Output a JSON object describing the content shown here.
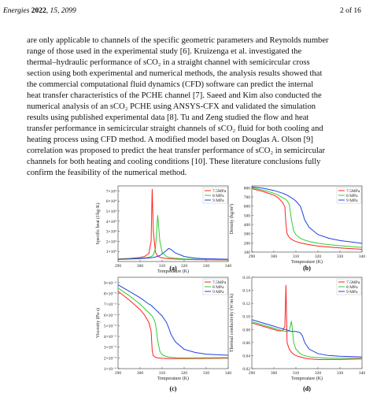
{
  "header": {
    "journal": "Energies",
    "year": "2022",
    "citation": ", 15, 2099",
    "page": "2 of 16"
  },
  "body": [
    "are only applicable to channels of the specific geometric parameters and Reynolds number",
    "range of those used in the experimental study [6]. Kruizenga et al. investigated the",
    "thermal–hydraulic performance of sCO₂ in a straight channel with semicircular cross",
    "section using both experimental and numerical methods, the analysis results showed that",
    "the commercial computational fluid dynamics (CFD) software can predict the internal",
    "heat transfer characteristics of the PCHE channel [7]. Saeed and Kim also conducted the",
    "numerical analysis of an sCO₂ PCHE using ANSYS-CFX and validated the simulation",
    "results using published experimental data [8]. Tu and Zeng studied the flow and heat",
    "transfer performance in semicircular straight channels of sCO₂ fluid for both cooling and",
    "heating process using CFD method. A modified model based on Douglas A. Olson [9]",
    "correlation was proposed to predict the heat transfer performance of sCO₂ in semicircular",
    "channels for both heating and cooling conditions [10]. These literature conclusions fully",
    "confirm the feasibility of the numerical method."
  ],
  "chart_data": [
    {
      "type": "line",
      "label": "(a)",
      "xlabel": "Temperature (K)",
      "ylabel": "Specific heat (J/kg·K)",
      "x": [
        290,
        295,
        300,
        302,
        304,
        305,
        305.5,
        306,
        307,
        308,
        309,
        310,
        312,
        313,
        314,
        316,
        320,
        325,
        330,
        340
      ],
      "xlim": [
        290,
        340
      ],
      "xticks": [
        290,
        300,
        310,
        320,
        330,
        340
      ],
      "ylim": [
        0,
        75000
      ],
      "yticks": [
        {
          "value": 10000,
          "label": "1×10⁴"
        },
        {
          "value": 20000,
          "label": "2×10⁴"
        },
        {
          "value": 30000,
          "label": "3×10⁴"
        },
        {
          "value": 40000,
          "label": "4×10⁴"
        },
        {
          "value": 50000,
          "label": "5×10⁴"
        },
        {
          "value": 60000,
          "label": "6×10⁴"
        },
        {
          "value": 70000,
          "label": "7×10⁴"
        }
      ],
      "series": [
        {
          "name": "7.5MPa",
          "color": "#ff2020",
          "values": [
            2500,
            3000,
            4000,
            5000,
            8000,
            20000,
            72000,
            30000,
            9000,
            5500,
            4200,
            3600,
            3000,
            2800,
            2600,
            2400,
            2100,
            1900,
            1800,
            1600
          ]
        },
        {
          "name": "8 MPa",
          "color": "#33cc33",
          "values": [
            2300,
            2700,
            3200,
            3600,
            4300,
            5000,
            5500,
            6500,
            13000,
            46000,
            20000,
            9000,
            5000,
            4200,
            3700,
            3200,
            2600,
            2200,
            2000,
            1800
          ]
        },
        {
          "name": "9 MPa",
          "color": "#2040e0",
          "values": [
            2100,
            2400,
            2800,
            3100,
            3500,
            3700,
            3900,
            4000,
            4500,
            5200,
            6000,
            7500,
            11000,
            13000,
            12000,
            8500,
            5000,
            3300,
            2700,
            2200
          ]
        }
      ]
    },
    {
      "type": "line",
      "label": "(b)",
      "xlabel": "Temperature (K)",
      "ylabel": "Density (kg/m³)",
      "x": [
        290,
        295,
        300,
        302,
        304,
        305,
        305.5,
        306,
        307,
        308,
        309,
        310,
        312,
        313,
        314,
        316,
        320,
        325,
        330,
        340
      ],
      "xlim": [
        290,
        340
      ],
      "xticks": [
        290,
        300,
        310,
        320,
        330,
        340
      ],
      "ylim": [
        100,
        820
      ],
      "yticks": [
        100,
        200,
        300,
        400,
        500,
        600,
        700,
        800
      ],
      "series": [
        {
          "name": "7.5MPa",
          "color": "#ff2020",
          "values": [
            790,
            760,
            720,
            690,
            640,
            590,
            400,
            300,
            260,
            240,
            225,
            215,
            200,
            195,
            190,
            180,
            165,
            155,
            145,
            130
          ]
        },
        {
          "name": "8 MPa",
          "color": "#33cc33",
          "values": [
            800,
            775,
            740,
            720,
            690,
            680,
            670,
            660,
            620,
            450,
            330,
            290,
            250,
            240,
            230,
            215,
            195,
            180,
            170,
            150
          ]
        },
        {
          "name": "9 MPa",
          "color": "#2040e0",
          "values": [
            810,
            795,
            770,
            755,
            740,
            730,
            725,
            720,
            705,
            690,
            675,
            655,
            600,
            530,
            450,
            370,
            290,
            250,
            225,
            195
          ]
        }
      ]
    },
    {
      "type": "line",
      "label": "(c)",
      "xlabel": "Temperature (K)",
      "ylabel": "Viscosity (Pa·s)",
      "x": [
        290,
        295,
        300,
        302,
        304,
        305,
        305.5,
        306,
        307,
        308,
        309,
        310,
        312,
        313,
        314,
        316,
        320,
        325,
        330,
        340
      ],
      "xlim": [
        290,
        340
      ],
      "xticks": [
        290,
        300,
        310,
        320,
        330,
        340
      ],
      "ylim": [
        1e-05,
        9.5e-05
      ],
      "yticks": [
        {
          "value": 1e-05,
          "label": "1×10⁻⁵"
        },
        {
          "value": 2e-05,
          "label": "2×10⁻⁵"
        },
        {
          "value": 3e-05,
          "label": "3×10⁻⁵"
        },
        {
          "value": 4e-05,
          "label": "4×10⁻⁵"
        },
        {
          "value": 5e-05,
          "label": "5×10⁻⁵"
        },
        {
          "value": 6e-05,
          "label": "6×10⁻⁵"
        },
        {
          "value": 7e-05,
          "label": "7×10⁻⁵"
        },
        {
          "value": 8e-05,
          "label": "8×10⁻⁵"
        },
        {
          "value": 9e-05,
          "label": "9×10⁻⁵"
        }
      ],
      "series": [
        {
          "name": "7.5MPa",
          "color": "#ff2020",
          "values": [
            8.2e-05,
            7.4e-05,
            6.5e-05,
            6e-05,
            5.3e-05,
            4.5e-05,
            2.7e-05,
            2.2e-05,
            2.05e-05,
            2e-05,
            1.98e-05,
            1.96e-05,
            1.94e-05,
            1.93e-05,
            1.93e-05,
            1.93e-05,
            1.93e-05,
            1.94e-05,
            1.95e-05,
            1.97e-05
          ]
        },
        {
          "name": "8 MPa",
          "color": "#33cc33",
          "values": [
            8.5e-05,
            7.8e-05,
            7e-05,
            6.6e-05,
            6.2e-05,
            6e-05,
            5.9e-05,
            5.7e-05,
            5.2e-05,
            3.6e-05,
            2.6e-05,
            2.3e-05,
            2.12e-05,
            2.08e-05,
            2.05e-05,
            2.02e-05,
            2e-05,
            2e-05,
            2.01e-05,
            2.03e-05
          ]
        },
        {
          "name": "9 MPa",
          "color": "#2040e0",
          "values": [
            8.8e-05,
            8.2e-05,
            7.6e-05,
            7.3e-05,
            7e-05,
            6.9e-05,
            6.8e-05,
            6.7e-05,
            6.5e-05,
            6.3e-05,
            6.1e-05,
            5.9e-05,
            5.3e-05,
            4.8e-05,
            4.2e-05,
            3.5e-05,
            2.8e-05,
            2.5e-05,
            2.35e-05,
            2.25e-05
          ]
        }
      ]
    },
    {
      "type": "line",
      "label": "(d)",
      "xlabel": "Temperature (K)",
      "ylabel": "Thermal conductivity (W/m·k)",
      "x": [
        290,
        295,
        300,
        302,
        304,
        305,
        305.5,
        306,
        307,
        308,
        309,
        310,
        312,
        313,
        314,
        316,
        320,
        325,
        330,
        340
      ],
      "xlim": [
        290,
        340
      ],
      "xticks": [
        290,
        300,
        310,
        320,
        330,
        340
      ],
      "ylim": [
        0.02,
        0.16
      ],
      "yticks": [
        0.02,
        0.04,
        0.06,
        0.08,
        {
          "value": 0.1,
          "label": "0.10"
        },
        0.12,
        0.14,
        0.16
      ],
      "series": [
        {
          "name": "7.5MPa",
          "color": "#ff2020",
          "values": [
            0.09,
            0.085,
            0.08,
            0.078,
            0.078,
            0.085,
            0.148,
            0.06,
            0.05,
            0.045,
            0.042,
            0.04,
            0.038,
            0.037,
            0.036,
            0.035,
            0.034,
            0.034,
            0.034,
            0.035
          ]
        },
        {
          "name": "8 MPa",
          "color": "#33cc33",
          "values": [
            0.092,
            0.087,
            0.082,
            0.08,
            0.078,
            0.077,
            0.077,
            0.076,
            0.078,
            0.093,
            0.06,
            0.05,
            0.043,
            0.041,
            0.04,
            0.038,
            0.037,
            0.036,
            0.036,
            0.036
          ]
        },
        {
          "name": "9 MPa",
          "color": "#2040e0",
          "values": [
            0.095,
            0.09,
            0.085,
            0.083,
            0.081,
            0.08,
            0.08,
            0.079,
            0.078,
            0.077,
            0.077,
            0.077,
            0.075,
            0.07,
            0.06,
            0.05,
            0.043,
            0.04,
            0.039,
            0.038
          ]
        }
      ]
    }
  ]
}
